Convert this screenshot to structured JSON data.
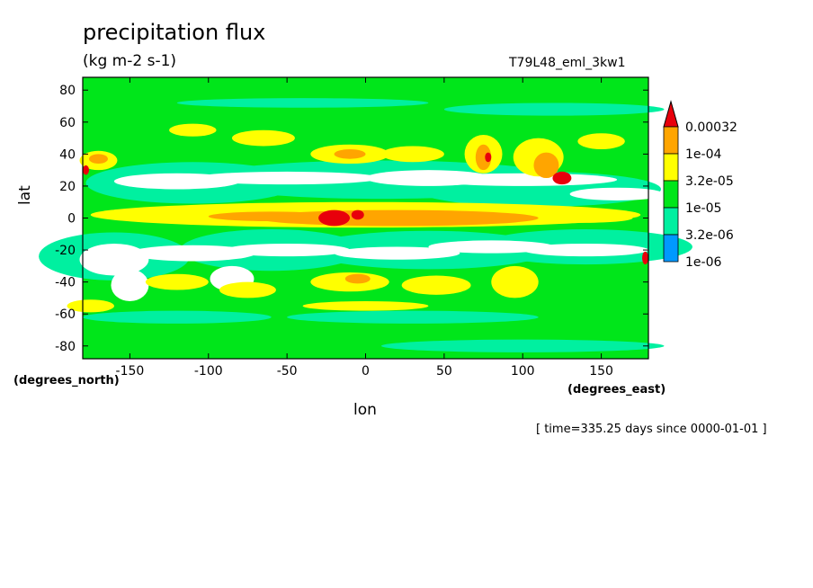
{
  "chart_data": {
    "type": "heatmap",
    "title": "precipitation flux",
    "units": "(kg m-2 s-1)",
    "run_label": "T79L48_eml_3kw1",
    "xlabel": "lon",
    "ylabel": "lat",
    "x_unit_label": "(degrees_east)",
    "y_unit_label": "(degrees_north)",
    "timestamp": "[ time=335.25 days since 0000-01-01 ]",
    "xlim": [
      -180,
      180
    ],
    "ylim": [
      -88,
      88
    ],
    "x_ticks": [
      -150,
      -100,
      -50,
      0,
      50,
      100,
      150
    ],
    "y_ticks": [
      80,
      60,
      40,
      20,
      0,
      -20,
      -40,
      -60,
      -80
    ],
    "x_tick_labels": [
      "-150",
      "-100",
      "-50",
      "0",
      "50",
      "100",
      "150"
    ],
    "y_tick_labels": [
      "80",
      "60",
      "40",
      "20",
      "0",
      "-20",
      "-40",
      "-60",
      "-80"
    ],
    "colorbar": {
      "levels": [
        "0.00032",
        "1e-04",
        "3.2e-05",
        "1e-05",
        "3.2e-06",
        "1e-06"
      ],
      "colors": [
        "#e8000b",
        "#ffa500",
        "#ffff00",
        "#00e61a",
        "#00f0a0",
        "#0099ff"
      ],
      "overflow_color": "#e8000b"
    },
    "field_description_bands": [
      {
        "lat": [
          -88,
          -60
        ],
        "level": "1e-05"
      },
      {
        "lat": [
          -60,
          -30
        ],
        "level": "1e-05"
      },
      {
        "lat": [
          -30,
          -12
        ],
        "level": "below"
      },
      {
        "lat": [
          -12,
          12
        ],
        "level": "3.2e-05"
      },
      {
        "lat": [
          12,
          28
        ],
        "level": "below"
      },
      {
        "lat": [
          28,
          60
        ],
        "level": "1e-05"
      },
      {
        "lat": [
          60,
          88
        ],
        "level": "1e-05"
      }
    ]
  }
}
